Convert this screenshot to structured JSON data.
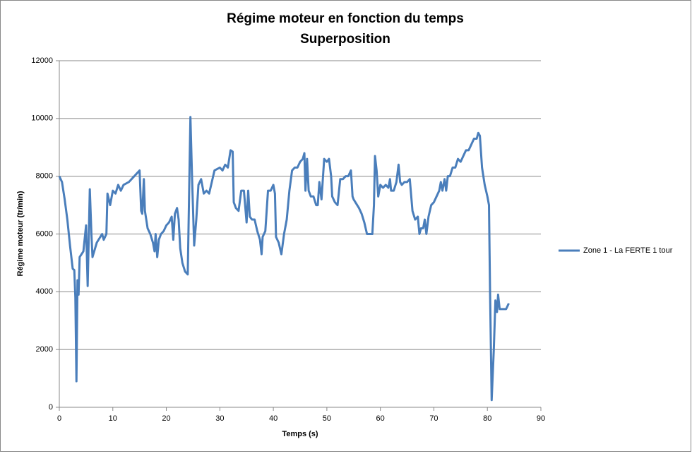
{
  "chart_data": {
    "type": "line",
    "title": "Régime moteur en fonction du temps",
    "subtitle": "Superposition",
    "x_label": "Temps (s)",
    "y_label": "Régime moteur (tr/min)",
    "xlim": [
      0,
      90
    ],
    "xticks": [
      0,
      10,
      20,
      30,
      40,
      50,
      60,
      70,
      80,
      90
    ],
    "ylim": [
      0,
      12000
    ],
    "yticks": [
      0,
      2000,
      4000,
      6000,
      8000,
      10000,
      12000
    ],
    "grid": true,
    "legend": "right",
    "x": [
      0,
      0.5,
      1,
      1.5,
      2,
      2.5,
      2.8,
      3.0,
      3.2,
      3.4,
      3.6,
      3.8,
      4.5,
      5,
      5.3,
      5.7,
      6,
      6.2,
      7,
      8,
      8.3,
      8.8,
      9,
      9.5,
      10,
      10.5,
      11,
      11.5,
      12,
      13,
      14,
      14.5,
      15,
      15.3,
      15.5,
      15.8,
      16,
      16.5,
      17,
      17.5,
      17.8,
      18,
      18.3,
      18.6,
      19,
      19.5,
      20,
      20.5,
      21,
      21.3,
      21.6,
      22,
      22.3,
      22.6,
      23,
      23.5,
      24,
      24.5,
      24.8,
      25.2,
      25.6,
      26,
      26.5,
      27,
      27.5,
      28,
      28.5,
      29,
      30,
      30.5,
      31,
      31.5,
      32,
      32.4,
      32.6,
      33,
      33.5,
      34,
      34.5,
      35,
      35.3,
      35.6,
      36,
      36.5,
      37,
      37.5,
      37.8,
      38,
      38.5,
      39,
      39.5,
      40,
      40.3,
      40.5,
      41,
      41.5,
      42,
      42.5,
      43,
      43.5,
      44,
      44.5,
      45,
      45.5,
      45.8,
      46,
      46.3,
      46.6,
      47,
      47.5,
      48,
      48.3,
      48.6,
      49,
      49.5,
      50,
      50.4,
      50.8,
      51,
      51.5,
      52,
      52.5,
      53,
      53.5,
      54,
      54.5,
      54.8,
      55,
      56,
      56.5,
      57,
      57.5,
      58.5,
      58.8,
      59,
      59.3,
      59.6,
      60,
      60.5,
      61,
      61.5,
      61.8,
      62,
      62.5,
      63,
      63.4,
      63.7,
      64,
      64.5,
      65,
      65.5,
      66,
      66.5,
      67,
      67.3,
      67.6,
      68,
      68.3,
      68.6,
      69,
      69.5,
      70,
      70.5,
      71,
      71.3,
      71.6,
      72,
      72.3,
      72.6,
      73,
      73.5,
      74,
      74.5,
      75,
      75.5,
      76,
      76.5,
      77,
      77.5,
      78,
      78.3,
      78.6,
      79,
      79.5,
      80,
      80.3,
      80.5,
      80.8,
      81.2,
      81.5,
      81.8,
      82,
      82.3,
      83,
      83.5,
      84
    ],
    "series": [
      {
        "name": "Zone 1 - La FERTE 1 tour",
        "color": "#4a7ebb",
        "values": [
          8000,
          7800,
          7200,
          6500,
          5600,
          4800,
          4750,
          3800,
          900,
          4400,
          3900,
          5200,
          5400,
          6300,
          4200,
          7550,
          6000,
          5200,
          5700,
          6000,
          5800,
          6000,
          7400,
          7000,
          7500,
          7400,
          7700,
          7500,
          7700,
          7800,
          8000,
          8100,
          8200,
          6800,
          6700,
          7900,
          6800,
          6200,
          6000,
          5700,
          5400,
          6000,
          5200,
          5800,
          6000,
          6100,
          6300,
          6400,
          6600,
          5800,
          6700,
          6900,
          6500,
          5500,
          5000,
          4700,
          4600,
          10050,
          8000,
          5600,
          6500,
          7700,
          7900,
          7400,
          7500,
          7400,
          7800,
          8200,
          8300,
          8200,
          8400,
          8300,
          8900,
          8850,
          7100,
          6900,
          6800,
          7500,
          7500,
          6400,
          7500,
          6600,
          6500,
          6500,
          6100,
          5800,
          5300,
          5900,
          6100,
          7500,
          7500,
          7700,
          7400,
          5900,
          5700,
          5300,
          6000,
          6500,
          7500,
          8200,
          8300,
          8300,
          8500,
          8600,
          8800,
          7500,
          8600,
          7500,
          7300,
          7300,
          7000,
          7000,
          7800,
          7200,
          8600,
          8500,
          8600,
          8000,
          7300,
          7100,
          7000,
          7900,
          7900,
          8000,
          8000,
          8200,
          7300,
          7200,
          6900,
          6700,
          6400,
          6000,
          6000,
          7000,
          8700,
          8200,
          7300,
          7700,
          7600,
          7700,
          7600,
          7900,
          7500,
          7500,
          7800,
          8400,
          7800,
          7700,
          7800,
          7800,
          7900,
          6800,
          6500,
          6600,
          6000,
          6200,
          6200,
          6500,
          6000,
          6600,
          7000,
          7100,
          7300,
          7500,
          7800,
          7500,
          7900,
          7500,
          8000,
          8000,
          8300,
          8300,
          8600,
          8500,
          8700,
          8900,
          8900,
          9100,
          9300,
          9300,
          9500,
          9400,
          8300,
          7700,
          7300,
          7000,
          4000,
          250,
          2000,
          3700,
          3300,
          3900,
          3400,
          3400,
          3400,
          3600
        ]
      }
    ]
  }
}
